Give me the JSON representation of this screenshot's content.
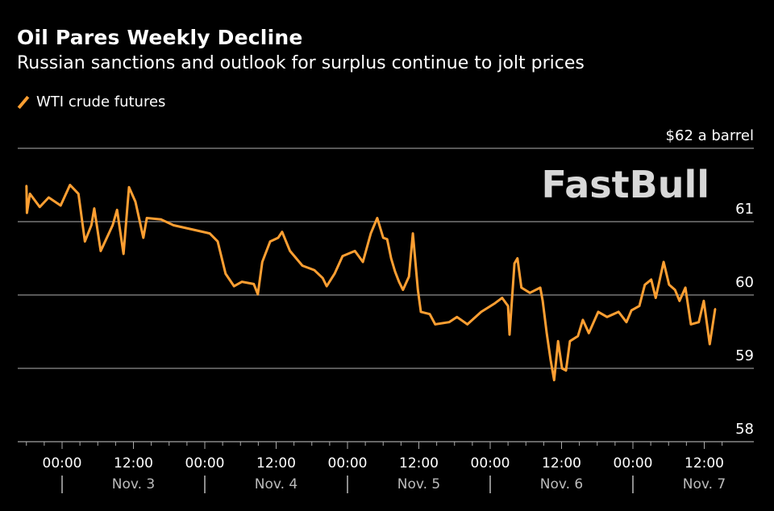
{
  "chart_data": {
    "type": "line",
    "title": "Oil Pares Weekly Decline",
    "subtitle": "Russian sanctions and outlook for surplus continue to jolt prices",
    "ylabel": "$62 a barrel",
    "ylim": [
      58,
      62
    ],
    "yticks": [
      {
        "value": 62,
        "label": "$62 a barrel"
      },
      {
        "value": 61,
        "label": "61"
      },
      {
        "value": 60,
        "label": "60"
      },
      {
        "value": 59,
        "label": "59"
      },
      {
        "value": 58,
        "label": "58"
      }
    ],
    "xlim": [
      "11-02 17:00",
      "11-07 20:30"
    ],
    "xticks": [
      {
        "at": "11-03 00:00",
        "label": "00:00"
      },
      {
        "at": "11-03 12:00",
        "label": "12:00"
      },
      {
        "at": "11-04 00:00",
        "label": "00:00"
      },
      {
        "at": "11-04 12:00",
        "label": "12:00"
      },
      {
        "at": "11-05 00:00",
        "label": "00:00"
      },
      {
        "at": "11-05 12:00",
        "label": "12:00"
      },
      {
        "at": "11-06 00:00",
        "label": "00:00"
      },
      {
        "at": "11-06 12:00",
        "label": "12:00"
      },
      {
        "at": "11-07 00:00",
        "label": "00:00"
      },
      {
        "at": "11-07 12:00",
        "label": "12:00"
      }
    ],
    "day_labels": [
      {
        "at": "11-03 12:00",
        "label": "Nov. 3"
      },
      {
        "at": "11-04 12:00",
        "label": "Nov. 4"
      },
      {
        "at": "11-05 12:00",
        "label": "Nov. 5"
      },
      {
        "at": "11-06 12:00",
        "label": "Nov. 6"
      },
      {
        "at": "11-07 12:00",
        "label": "Nov. 7"
      }
    ],
    "grid": true,
    "legend": "top-left",
    "series": [
      {
        "name": "WTI crude futures",
        "color": "#ff9f32",
        "points": [
          [
            "11-02 18:00",
            61.49
          ],
          [
            "11-02 18:05",
            61.12
          ],
          [
            "11-02 18:35",
            61.38
          ],
          [
            "11-02 20:15",
            61.2
          ],
          [
            "11-02 21:45",
            61.33
          ],
          [
            "11-02 23:45",
            61.22
          ],
          [
            "11-03 01:20",
            61.5
          ],
          [
            "11-03 02:45",
            61.38
          ],
          [
            "11-03 03:50",
            60.73
          ],
          [
            "11-03 04:55",
            60.95
          ],
          [
            "11-03 05:25",
            61.18
          ],
          [
            "11-03 06:30",
            60.6
          ],
          [
            "11-03 08:30",
            60.95
          ],
          [
            "11-03 09:15",
            61.16
          ],
          [
            "11-03 10:20",
            60.56
          ],
          [
            "11-03 11:15",
            61.47
          ],
          [
            "11-03 12:20",
            61.27
          ],
          [
            "11-03 13:40",
            60.78
          ],
          [
            "11-03 14:15",
            61.05
          ],
          [
            "11-03 16:40",
            61.03
          ],
          [
            "11-03 18:45",
            60.95
          ],
          [
            "11-03 22:05",
            60.89
          ],
          [
            "11-04 00:50",
            60.84
          ],
          [
            "11-04 02:10",
            60.73
          ],
          [
            "11-04 03:30",
            60.29
          ],
          [
            "11-04 04:55",
            60.12
          ],
          [
            "11-04 06:15",
            60.18
          ],
          [
            "11-04 08:15",
            60.15
          ],
          [
            "11-04 08:55",
            60.01
          ],
          [
            "11-04 09:40",
            60.45
          ],
          [
            "11-04 11:00",
            60.73
          ],
          [
            "11-04 12:20",
            60.78
          ],
          [
            "11-04 13:00",
            60.86
          ],
          [
            "11-04 14:20",
            60.6
          ],
          [
            "11-04 16:25",
            60.4
          ],
          [
            "11-04 18:25",
            60.34
          ],
          [
            "11-04 19:50",
            60.23
          ],
          [
            "11-04 20:30",
            60.12
          ],
          [
            "11-04 21:50",
            60.29
          ],
          [
            "11-04 23:10",
            60.53
          ],
          [
            "11-05 01:15",
            60.6
          ],
          [
            "11-05 02:35",
            60.45
          ],
          [
            "11-05 03:55",
            60.84
          ],
          [
            "11-05 05:00",
            61.05
          ],
          [
            "11-05 06:00",
            60.78
          ],
          [
            "11-05 06:40",
            60.76
          ],
          [
            "11-05 07:20",
            60.5
          ],
          [
            "11-05 08:00",
            60.32
          ],
          [
            "11-05 08:40",
            60.18
          ],
          [
            "11-05 09:20",
            60.07
          ],
          [
            "11-05 10:20",
            60.25
          ],
          [
            "11-05 11:00",
            60.84
          ],
          [
            "11-05 11:50",
            60.07
          ],
          [
            "11-05 12:20",
            59.77
          ],
          [
            "11-05 13:50",
            59.74
          ],
          [
            "11-05 14:45",
            59.6
          ],
          [
            "11-05 17:05",
            59.63
          ],
          [
            "11-05 18:25",
            59.7
          ],
          [
            "11-05 20:10",
            59.6
          ],
          [
            "11-05 22:30",
            59.77
          ],
          [
            "11-06 00:40",
            59.88
          ],
          [
            "11-06 02:00",
            59.96
          ],
          [
            "11-06 03:00",
            59.85
          ],
          [
            "11-06 03:15",
            59.46
          ],
          [
            "11-06 04:05",
            60.43
          ],
          [
            "11-06 04:35",
            60.5
          ],
          [
            "11-06 05:15",
            60.1
          ],
          [
            "11-06 06:40",
            60.03
          ],
          [
            "11-06 08:25",
            60.1
          ],
          [
            "11-06 08:50",
            59.92
          ],
          [
            "11-06 09:30",
            59.48
          ],
          [
            "11-06 10:10",
            59.11
          ],
          [
            "11-06 10:45",
            58.84
          ],
          [
            "11-06 11:25",
            59.37
          ],
          [
            "11-06 12:05",
            59.0
          ],
          [
            "11-06 12:45",
            58.97
          ],
          [
            "11-06 13:25",
            59.37
          ],
          [
            "11-06 14:45",
            59.44
          ],
          [
            "11-06 15:35",
            59.66
          ],
          [
            "11-06 16:35",
            59.48
          ],
          [
            "11-06 18:10",
            59.77
          ],
          [
            "11-06 19:40",
            59.7
          ],
          [
            "11-06 21:35",
            59.77
          ],
          [
            "11-06 22:55",
            59.63
          ],
          [
            "11-06 23:45",
            59.79
          ],
          [
            "11-07 01:05",
            59.85
          ],
          [
            "11-07 02:00",
            60.14
          ],
          [
            "11-07 03:05",
            60.21
          ],
          [
            "11-07 03:50",
            59.96
          ],
          [
            "11-07 05:10",
            60.45
          ],
          [
            "11-07 06:05",
            60.14
          ],
          [
            "11-07 07:05",
            60.07
          ],
          [
            "11-07 07:50",
            59.92
          ],
          [
            "11-07 08:50",
            60.1
          ],
          [
            "11-07 09:45",
            59.6
          ],
          [
            "11-07 11:05",
            59.63
          ],
          [
            "11-07 11:55",
            59.92
          ],
          [
            "11-07 12:55",
            59.33
          ],
          [
            "11-07 13:50",
            59.81
          ]
        ]
      }
    ]
  },
  "watermark": "FastBull"
}
